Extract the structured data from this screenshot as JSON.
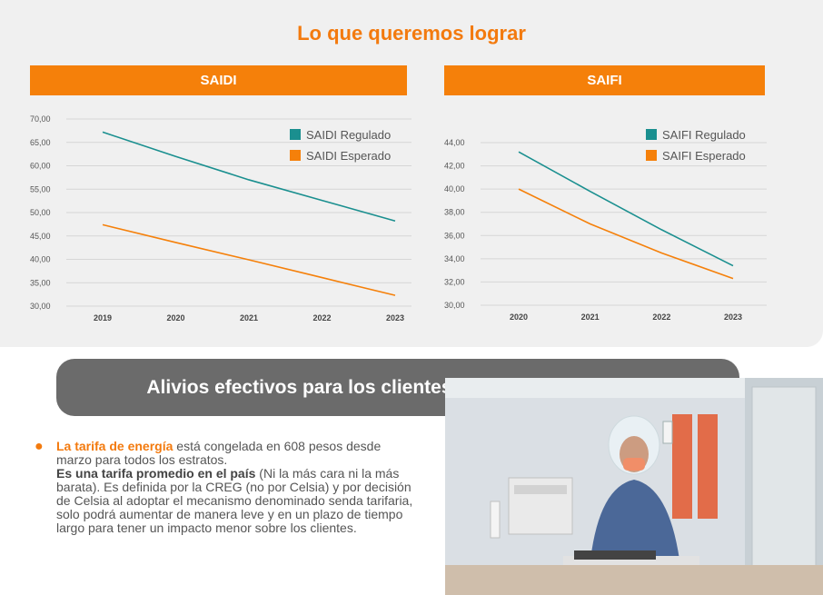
{
  "main_title": "Lo que queremos lograr",
  "saidi": {
    "header": "SAIDI",
    "chart_data": {
      "type": "line",
      "title": "SAIDI",
      "x": [
        "2019",
        "2020",
        "2021",
        "2022",
        "2023"
      ],
      "y_ticks": [
        "70,00",
        "65,00",
        "60,00",
        "55,00",
        "50,00",
        "45,00",
        "40,00",
        "35,00",
        "30,00"
      ],
      "ylim": [
        30,
        70
      ],
      "grid": true,
      "legend_position": "top-right",
      "series": [
        {
          "name": "SAIDI Regulado",
          "color": "#1a8f8f",
          "values": [
            67.2,
            62.0,
            57.0,
            52.6,
            48.2
          ]
        },
        {
          "name": "SAIDI Esperado",
          "color": "#f5800a",
          "values": [
            47.4,
            43.6,
            39.9,
            36.1,
            32.3
          ]
        }
      ]
    }
  },
  "saifi": {
    "header": "SAIFI",
    "chart_data": {
      "type": "line",
      "title": "SAIFI",
      "x": [
        "2020",
        "2021",
        "2022",
        "2023"
      ],
      "y_ticks": [
        "44,00",
        "42,00",
        "40,00",
        "38,00",
        "36,00",
        "34,00",
        "32,00",
        "30,00"
      ],
      "ylim": [
        30,
        44
      ],
      "grid": true,
      "legend_position": "top-right",
      "series": [
        {
          "name": "SAIFI Regulado",
          "color": "#1a8f8f",
          "values": [
            43.2,
            39.8,
            36.5,
            33.4
          ]
        },
        {
          "name": "SAIFI Esperado",
          "color": "#f5800a",
          "values": [
            40.0,
            37.0,
            34.5,
            32.3
          ]
        }
      ]
    }
  },
  "banner": "Alivios efectivos para los clientes de todos los estratos",
  "bullet": {
    "highlight": "La tarifa de energía",
    "text1": " está congelada en 608 pesos desde marzo para todos los estratos.",
    "strong": "Es una tarifa promedio en el país",
    "text2": " (Ni la más cara ni la más barata). Es definida por la CREG (no por Celsia) y por decisión de Celsia al adoptar el mecanismo denominado senda tarifaria, solo podrá aumentar de manera leve y en un plazo de tiempo largo para tener un impacto menor sobre los clientes."
  }
}
